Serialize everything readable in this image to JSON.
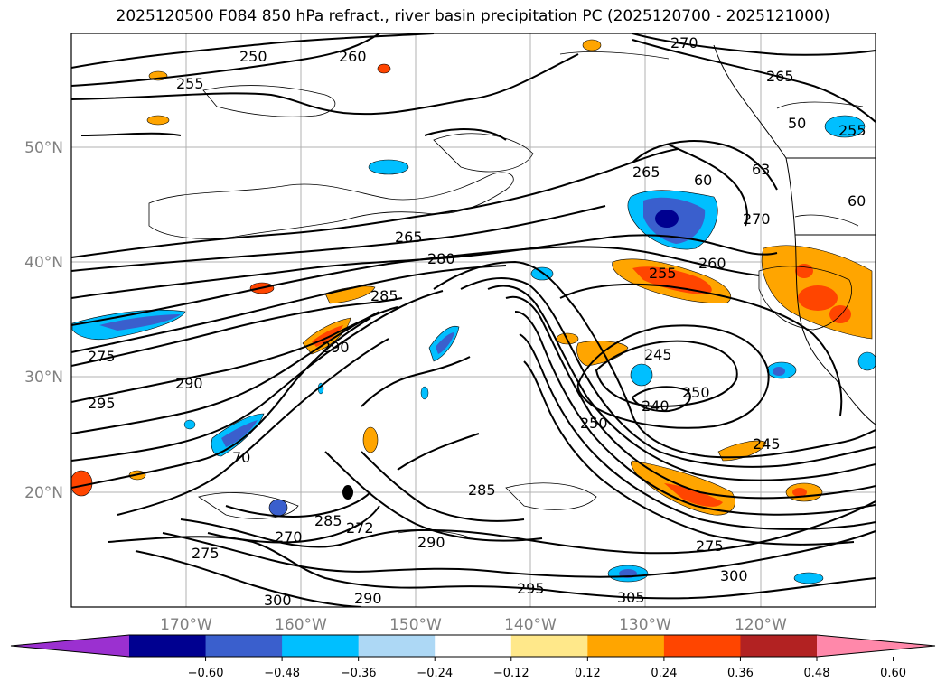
{
  "title": "2025120500 F084 850 hPa refract., river basin precipitation PC (2025120700 - 2025121000)",
  "axes": {
    "lon_labels": [
      "170°W",
      "160°W",
      "150°W",
      "140°W",
      "130°W",
      "120°W"
    ],
    "lat_labels": [
      "50°N",
      "40°N",
      "30°N",
      "20°N"
    ]
  },
  "contour_labels": [
    "250",
    "260",
    "270",
    "255",
    "265",
    "255",
    "50",
    "265",
    "63",
    "60",
    "60",
    "270",
    "265",
    "280",
    "255",
    "260",
    "285",
    "275",
    "290",
    "290",
    "295",
    "245",
    "250",
    "240",
    "250",
    "245",
    "70",
    "285",
    "285",
    "272",
    "275",
    "290",
    "270",
    "275",
    "300",
    "290",
    "295",
    "305",
    "300"
  ],
  "colorbar": {
    "colors": [
      "#9b30d0",
      "#000090",
      "#3a5fcd",
      "#00bfff",
      "#add8f5",
      "#ffffff",
      "#ffe88a",
      "#ffa500",
      "#ff4500",
      "#b22222",
      "#ff88aa"
    ],
    "tick_labels": [
      "−0.60",
      "−0.48",
      "−0.36",
      "−0.24",
      "−0.12",
      "0.12",
      "0.24",
      "0.36",
      "0.48",
      "0.60"
    ]
  }
}
